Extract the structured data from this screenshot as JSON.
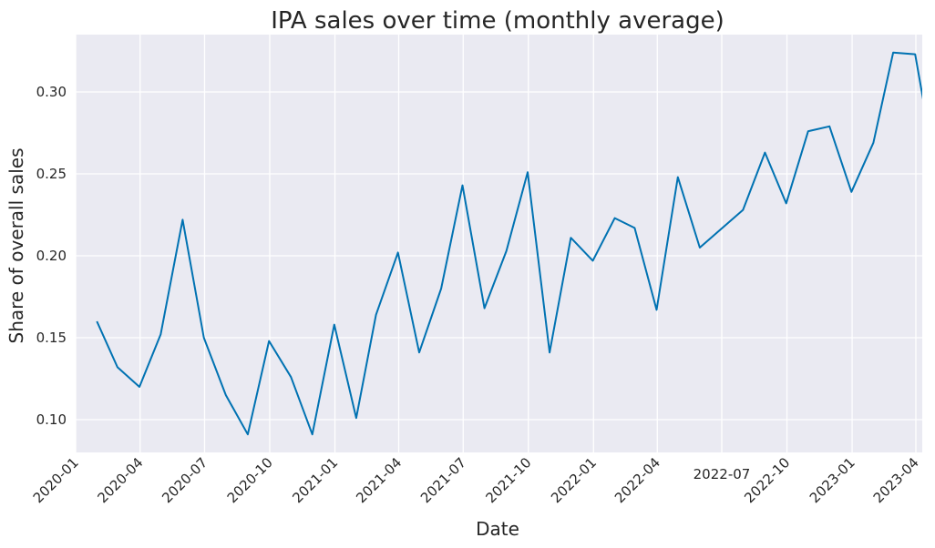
{
  "chart_data": {
    "type": "line",
    "title": "IPA sales over time (monthly average)",
    "xlabel": "Date",
    "ylabel": "Share of overall sales",
    "x_tick_labels": [
      "2020-01",
      "2020-04",
      "2020-07",
      "2020-10",
      "2021-01",
      "2021-04",
      "2021-07",
      "2021-10",
      "2022-01",
      "2022-04",
      "2022-07",
      "2022-10",
      "2023-01",
      "2023-04"
    ],
    "y_tick_labels": [
      "0.10",
      "0.15",
      "0.20",
      "0.25",
      "0.30"
    ],
    "ylim": [
      0.08,
      0.335
    ],
    "xlim": [
      "2020-01-01",
      "2023-04-10"
    ],
    "grid": true,
    "legend": "none",
    "colors": {
      "line": "#0072b2",
      "plot_background": "#eaeaf2",
      "grid": "#ffffff"
    },
    "series": [
      {
        "x": [
          "2020-01-31",
          "2020-02-29",
          "2020-03-31",
          "2020-04-30",
          "2020-05-31",
          "2020-06-30",
          "2020-07-31",
          "2020-08-31",
          "2020-09-30",
          "2020-10-31",
          "2020-11-30",
          "2020-12-31",
          "2021-01-31",
          "2021-02-28",
          "2021-03-31",
          "2021-04-30",
          "2021-05-31",
          "2021-06-30",
          "2021-07-31",
          "2021-08-31",
          "2021-09-30",
          "2021-10-31",
          "2021-11-30",
          "2021-12-31",
          "2022-01-31",
          "2022-02-28",
          "2022-03-31",
          "2022-04-30",
          "2022-05-31",
          "2022-07-31",
          "2022-08-31",
          "2022-09-30",
          "2022-10-31",
          "2022-11-30",
          "2022-12-31",
          "2023-01-31",
          "2023-02-28",
          "2023-03-31",
          "2023-04-30"
        ],
        "values": [
          0.16,
          0.132,
          0.12,
          0.152,
          0.222,
          0.15,
          0.115,
          0.091,
          0.148,
          0.126,
          0.091,
          0.158,
          0.101,
          0.164,
          0.202,
          0.141,
          0.18,
          0.243,
          0.168,
          0.203,
          0.251,
          0.141,
          0.211,
          0.197,
          0.223,
          0.217,
          0.167,
          0.248,
          0.205,
          0.228,
          0.263,
          0.232,
          0.276,
          0.279,
          0.239,
          0.269,
          0.324,
          0.323,
          0.25
        ]
      }
    ]
  }
}
